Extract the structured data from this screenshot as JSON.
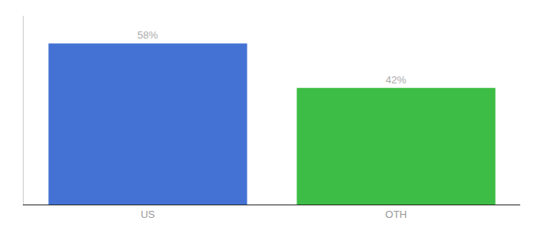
{
  "chart_data": {
    "type": "bar",
    "categories": [
      "US",
      "OTH"
    ],
    "values": [
      58,
      42
    ],
    "value_labels": [
      "58%",
      "42%"
    ],
    "colors": [
      "#4472d4",
      "#3dbd45"
    ],
    "ylim": [
      0,
      68
    ],
    "grid": false,
    "data_labels": true,
    "tick_labels": "x"
  }
}
